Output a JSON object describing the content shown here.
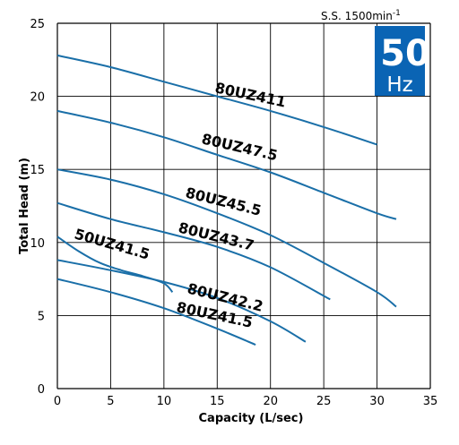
{
  "chart_data": {
    "type": "line",
    "xlabel": "Capacity (L/sec)",
    "ylabel": "Total Head (m)",
    "xlim": [
      0,
      35
    ],
    "ylim": [
      0,
      25
    ],
    "x_ticks": [
      0,
      5,
      10,
      15,
      20,
      25,
      30,
      35
    ],
    "y_ticks": [
      0,
      5,
      10,
      15,
      20,
      25
    ],
    "grid": true,
    "speed_label": "S.S. 1500min",
    "speed_superscript": "-1",
    "badge": {
      "value": "50",
      "unit": "Hz",
      "color": "#0a64b4"
    },
    "line_color": "#1a6fa8",
    "series": [
      {
        "name": "80UZ411",
        "x": [
          0,
          5,
          10,
          15,
          20,
          25,
          30
        ],
        "y": [
          22.8,
          22.0,
          21.0,
          20.0,
          19.0,
          17.9,
          16.7
        ]
      },
      {
        "name": "80UZ47.5",
        "x": [
          0,
          5,
          10,
          15,
          20,
          25,
          30,
          31.8
        ],
        "y": [
          19.0,
          18.2,
          17.2,
          16.0,
          14.8,
          13.4,
          12.0,
          11.6
        ]
      },
      {
        "name": "80UZ45.5",
        "x": [
          0,
          5,
          10,
          15,
          20,
          25,
          30,
          31.8
        ],
        "y": [
          15.0,
          14.3,
          13.3,
          12.0,
          10.5,
          8.6,
          6.6,
          5.6
        ]
      },
      {
        "name": "80UZ43.7",
        "x": [
          0,
          5,
          10,
          15,
          20,
          25.6
        ],
        "y": [
          12.7,
          11.6,
          10.7,
          9.7,
          8.3,
          6.1
        ]
      },
      {
        "name": "50UZ41.5",
        "x": [
          0,
          2,
          4,
          6,
          8,
          10,
          10.8
        ],
        "y": [
          10.4,
          9.4,
          8.6,
          8.1,
          7.7,
          7.2,
          6.6
        ]
      },
      {
        "name": "80UZ42.2",
        "x": [
          0,
          5,
          10,
          15,
          20,
          23.3
        ],
        "y": [
          8.8,
          8.1,
          7.3,
          6.2,
          4.6,
          3.2
        ]
      },
      {
        "name": "80UZ41.5",
        "x": [
          0,
          5,
          10,
          15,
          18.6
        ],
        "y": [
          7.5,
          6.6,
          5.5,
          4.1,
          3.0
        ]
      }
    ]
  }
}
